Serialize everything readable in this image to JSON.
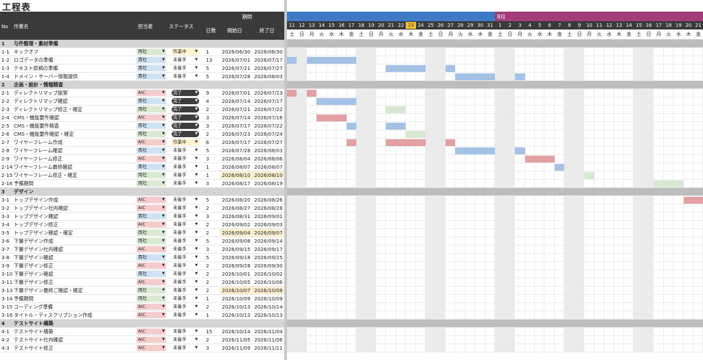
{
  "title": "工程表",
  "colors": {
    "kyosha": "#cfe2f3",
    "ryosha": "#d9ead3",
    "aic": "#f4cccc",
    "sagyochu": "#fff2cc",
    "done": "#3d3d3d",
    "mitchaku": "#ffffff",
    "bar_blue": "#a4c2e6",
    "bar_red": "#e3a0a0",
    "bar_green": "#d5e8d0",
    "month7": "#3c7ac6",
    "month8": "#a23d79",
    "today": "#f1c232"
  },
  "header": {
    "no": "No",
    "task": "作業名",
    "owner": "担当者",
    "status": "ステータス",
    "period": "期間",
    "days": "日数",
    "start": "開始日",
    "end": "終了日"
  },
  "gantt": {
    "month_label_aug": "8月",
    "dates": [
      "11",
      "12",
      "13",
      "14",
      "15",
      "16",
      "17",
      "18",
      "19",
      "20",
      "21",
      "22",
      "23",
      "24",
      "25",
      "26",
      "27",
      "28",
      "29",
      "30",
      "31",
      "1",
      "2",
      "3",
      "4",
      "5",
      "6",
      "7",
      "8",
      "9",
      "10",
      "11",
      "12",
      "13",
      "14",
      "15",
      "16",
      "17",
      "18",
      "19",
      "20",
      "21"
    ],
    "weekdays": [
      "土",
      "日",
      "月",
      "火",
      "水",
      "木",
      "金",
      "土",
      "日",
      "月",
      "火",
      "水",
      "木",
      "金",
      "土",
      "日",
      "月",
      "火",
      "水",
      "木",
      "金",
      "土",
      "日",
      "月",
      "火",
      "水",
      "木",
      "金",
      "土",
      "日",
      "月",
      "火",
      "水",
      "木",
      "金",
      "土",
      "日",
      "月",
      "火",
      "水",
      "木",
      "金"
    ],
    "today_index": 12
  },
  "rows": [
    {
      "type": "sec",
      "no": "1",
      "task": "与件整理・素材準備"
    },
    {
      "no": "1-1",
      "task": "キックオフ",
      "owner": "両社",
      "status": "作業中",
      "days": "1",
      "start": "2026/06/30",
      "end": "2026/06/30",
      "bars": []
    },
    {
      "no": "1-2",
      "task": "ロゴデータの準備",
      "owner": "貴社",
      "status": "未着手",
      "days": "13",
      "start": "2026/07/01",
      "end": "2026/07/17",
      "bars": [
        {
          "s": 0,
          "e": 0,
          "c": "bar_blue"
        },
        {
          "s": 2,
          "e": 6,
          "c": "bar_blue"
        }
      ]
    },
    {
      "no": "1-3",
      "task": "テキスト原稿の準備",
      "owner": "貴社",
      "status": "未着手",
      "days": "5",
      "start": "2026/07/21",
      "end": "2026/07/27",
      "bars": [
        {
          "s": 10,
          "e": 13,
          "c": "bar_blue"
        },
        {
          "s": 16,
          "e": 16,
          "c": "bar_blue"
        }
      ]
    },
    {
      "no": "1-4",
      "task": "ドメイン・サーバー情報提供",
      "owner": "貴社",
      "status": "未着手",
      "days": "5",
      "start": "2026/07/28",
      "end": "2026/08/03",
      "bars": [
        {
          "s": 17,
          "e": 20,
          "c": "bar_blue"
        },
        {
          "s": 23,
          "e": 23,
          "c": "bar_blue"
        }
      ]
    },
    {
      "type": "sec",
      "no": "2",
      "task": "企画・設計・情報精査"
    },
    {
      "no": "2-1",
      "task": "ディレクトリマップ提案",
      "owner": "AIC",
      "status": "完了",
      "days": "9",
      "start": "2026/07/01",
      "end": "2026/07/13",
      "bars": [
        {
          "s": 0,
          "e": 0,
          "c": "bar_red"
        },
        {
          "s": 2,
          "e": 2,
          "c": "bar_red"
        }
      ]
    },
    {
      "no": "2-2",
      "task": "ディレクトリマップ確認",
      "owner": "貴社",
      "status": "完了",
      "days": "4",
      "start": "2026/07/14",
      "end": "2026/07/17",
      "bars": [
        {
          "s": 3,
          "e": 6,
          "c": "bar_blue"
        }
      ]
    },
    {
      "no": "2-3",
      "task": "ディレクトリマップ修正・確定",
      "owner": "両社",
      "status": "完了",
      "days": "2",
      "start": "2026/07/21",
      "end": "2026/07/22",
      "bars": [
        {
          "s": 10,
          "e": 11,
          "c": "bar_green"
        }
      ]
    },
    {
      "no": "2-4",
      "task": "CMS・機能要件確認",
      "owner": "AIC",
      "status": "完了",
      "days": "3",
      "start": "2026/07/14",
      "end": "2026/07/16",
      "bars": [
        {
          "s": 3,
          "e": 5,
          "c": "bar_red"
        }
      ]
    },
    {
      "no": "2-5",
      "task": "CMS・機能要件精査",
      "owner": "貴社",
      "status": "完了",
      "days": "3",
      "start": "2026/07/17",
      "end": "2026/07/22",
      "bars": [
        {
          "s": 6,
          "e": 6,
          "c": "bar_blue"
        },
        {
          "s": 10,
          "e": 11,
          "c": "bar_blue"
        }
      ]
    },
    {
      "no": "2-6",
      "task": "CMS・機能要件確認・確定",
      "owner": "両社",
      "status": "完了",
      "days": "2",
      "start": "2026/07/23",
      "end": "2026/07/24",
      "bars": [
        {
          "s": 12,
          "e": 13,
          "c": "bar_green"
        }
      ]
    },
    {
      "no": "2-7",
      "task": "ワイヤーフレーム作成",
      "owner": "AIC",
      "status": "作業中",
      "days": "6",
      "start": "2026/07/17",
      "end": "2026/07/27",
      "bars": [
        {
          "s": 6,
          "e": 6,
          "c": "bar_red"
        },
        {
          "s": 10,
          "e": 13,
          "c": "bar_red"
        },
        {
          "s": 16,
          "e": 16,
          "c": "bar_red"
        }
      ]
    },
    {
      "no": "2-8",
      "task": "ワイヤーフレーム確認",
      "owner": "貴社",
      "status": "未着手",
      "days": "5",
      "start": "2026/07/28",
      "end": "2026/08/03",
      "bars": [
        {
          "s": 17,
          "e": 20,
          "c": "bar_blue"
        },
        {
          "s": 23,
          "e": 23,
          "c": "bar_blue"
        }
      ]
    },
    {
      "no": "2-9",
      "task": "ワイヤーフレーム修正",
      "owner": "AIC",
      "status": "未着手",
      "days": "3",
      "start": "2026/08/04",
      "end": "2026/08/06",
      "bars": [
        {
          "s": 24,
          "e": 26,
          "c": "bar_red"
        }
      ]
    },
    {
      "no": "2-14",
      "task": "ワイヤーフレーム最終確認",
      "owner": "貴社",
      "status": "未着手",
      "days": "1",
      "start": "2026/08/07",
      "end": "2026/08/07",
      "bars": [
        {
          "s": 27,
          "e": 27,
          "c": "bar_blue"
        }
      ]
    },
    {
      "no": "2-15",
      "task": "ワイヤーフレーム修正・確定",
      "owner": "両社",
      "status": "未着手",
      "days": "1",
      "start": "2026/08/10",
      "end": "2026/08/10",
      "hl": true,
      "bars": [
        {
          "s": 30,
          "e": 30,
          "c": "bar_green"
        }
      ]
    },
    {
      "no": "2-16",
      "task": "予備期間",
      "owner": "両社",
      "status": "未着手",
      "days": "3",
      "start": "2026/08/17",
      "end": "2026/08/19",
      "bars": [
        {
          "s": 37,
          "e": 39,
          "c": "bar_green"
        }
      ]
    },
    {
      "type": "sec",
      "no": "3",
      "task": "デザイン"
    },
    {
      "no": "3-1",
      "task": "トップデザイン作成",
      "owner": "AIC",
      "status": "未着手",
      "days": "5",
      "start": "2026/08/20",
      "end": "2026/08/26",
      "bars": [
        {
          "s": 40,
          "e": 41,
          "c": "bar_red"
        }
      ]
    },
    {
      "no": "3-2",
      "task": "トップデザイン社内確認",
      "owner": "AIC",
      "status": "未着手",
      "days": "2",
      "start": "2026/08/27",
      "end": "2026/08/28",
      "bars": []
    },
    {
      "no": "3-3",
      "task": "トップデザイン確認",
      "owner": "貴社",
      "status": "未着手",
      "days": "3",
      "start": "2026/08/31",
      "end": "2026/09/01",
      "bars": []
    },
    {
      "no": "3-4",
      "task": "トップデザイン修正",
      "owner": "AIC",
      "status": "未着手",
      "days": "2",
      "start": "2026/09/02",
      "end": "2026/09/03",
      "bars": []
    },
    {
      "no": "3-5",
      "task": "トップデザイン確認・確定",
      "owner": "両社",
      "status": "未着手",
      "days": "2",
      "start": "2026/09/04",
      "end": "2026/09/07",
      "hl": true,
      "bars": []
    },
    {
      "no": "3-6",
      "task": "下層デザイン作成",
      "owner": "両社",
      "status": "未着手",
      "days": "5",
      "start": "2026/09/08",
      "end": "2026/09/14",
      "bars": []
    },
    {
      "no": "3-7",
      "task": "下層デザイン社内確認",
      "owner": "AIC",
      "status": "未着手",
      "days": "3",
      "start": "2026/09/15",
      "end": "2026/09/17",
      "bars": []
    },
    {
      "no": "3-8",
      "task": "下層デザイン確認",
      "owner": "貴社",
      "status": "未着手",
      "days": "5",
      "start": "2026/09/18",
      "end": "2026/09/25",
      "bars": []
    },
    {
      "no": "3-9",
      "task": "下層デザイン修正",
      "owner": "AIC",
      "status": "未着手",
      "days": "2",
      "start": "2026/09/28",
      "end": "2026/09/30",
      "bars": []
    },
    {
      "no": "3-10",
      "task": "下層デザイン確認",
      "owner": "貴社",
      "status": "未着手",
      "days": "2",
      "start": "2026/10/01",
      "end": "2026/10/02",
      "bars": []
    },
    {
      "no": "3-11",
      "task": "下層デザイン修正",
      "owner": "AIC",
      "status": "未着手",
      "days": "2",
      "start": "2026/10/05",
      "end": "2026/10/06",
      "bars": []
    },
    {
      "no": "3-13",
      "task": "下層デザイン最終ご確認・確定",
      "owner": "両社",
      "status": "未着手",
      "days": "2",
      "start": "2026/10/07",
      "end": "2026/10/08",
      "hl": true,
      "bars": []
    },
    {
      "no": "3-14",
      "task": "予備期間",
      "owner": "両社",
      "status": "未着手",
      "days": "1",
      "start": "2026/10/09",
      "end": "2026/10/09",
      "bars": []
    },
    {
      "no": "3-15",
      "task": "コーディング準備",
      "owner": "AIC",
      "status": "未着手",
      "days": "2",
      "start": "2026/10/13",
      "end": "2026/10/14",
      "bars": []
    },
    {
      "no": "3-16",
      "task": "タイトル・ディスクリプション作成",
      "owner": "AIC",
      "status": "未着手",
      "days": "1",
      "start": "2026/10/13",
      "end": "2026/10/13",
      "bars": []
    },
    {
      "type": "sec",
      "no": "4",
      "task": "テストサイト構築"
    },
    {
      "no": "4-1",
      "task": "テストサイト構築",
      "owner": "AIC",
      "status": "未着手",
      "days": "15",
      "start": "2026/10/14",
      "end": "2026/11/04",
      "bars": []
    },
    {
      "no": "4-2",
      "task": "テストサイト社内確認",
      "owner": "AIC",
      "status": "未着手",
      "days": "2",
      "start": "2026/11/05",
      "end": "2026/11/06",
      "bars": []
    },
    {
      "no": "4-3",
      "task": "テストサイト修正",
      "owner": "AIC",
      "status": "未着手",
      "days": "3",
      "start": "2026/11/09",
      "end": "2026/11/11",
      "bars": []
    }
  ]
}
